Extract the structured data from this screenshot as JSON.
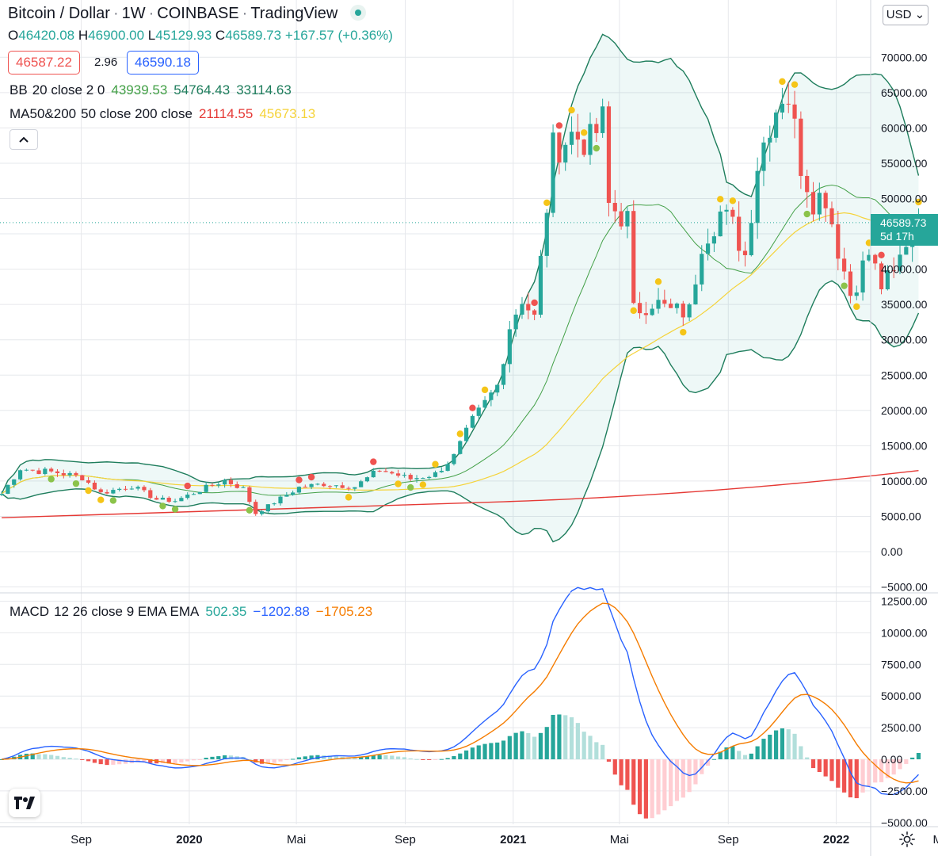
{
  "header": {
    "symbol": "Bitcoin / Dollar",
    "interval": "1W",
    "exchange": "COINBASE",
    "provider": "TradingView"
  },
  "ohlc": {
    "o_label": "O",
    "o": "46420.08",
    "h_label": "H",
    "h": "46900.00",
    "l_label": "L",
    "l": "45129.93",
    "c_label": "C",
    "c": "46589.73",
    "change": "+167.57 (+0.36%)"
  },
  "quote": {
    "bid": "46587.22",
    "spread": "2.96",
    "ask": "46590.18"
  },
  "indicators": {
    "bb": {
      "name": "BB",
      "params": "20 close 2 0",
      "basis": "43939.53",
      "upper": "54764.43",
      "lower": "33114.63"
    },
    "ma": {
      "name": "MA50&200",
      "params": "50 close 200 close",
      "ma50": "21114.55",
      "ma200": "45673.13"
    },
    "macd": {
      "name": "MACD",
      "params": "12 26 close 9 EMA EMA",
      "hist": "502.35",
      "macd": "−1202.88",
      "signal": "−1705.23"
    }
  },
  "currency": "USD",
  "last_price": {
    "value": "46589.73",
    "countdown": "5d 17h"
  },
  "colors": {
    "up": "#26a69a",
    "down": "#ef5350",
    "bb": "#1e7d5c",
    "ma_red": "#e53935",
    "ma_yellow": "#f5d33a",
    "macd_line": "#2962ff",
    "signal_line": "#f57c00",
    "grid": "#e6e8ec"
  },
  "chart_data": [
    {
      "type": "candlestick",
      "title": "Bitcoin / Dollar",
      "interval": "1W",
      "ylim": [
        -5000,
        75000
      ],
      "y_ticks": [
        "70000.00",
        "65000.00",
        "60000.00",
        "55000.00",
        "50000.00",
        "45000.00",
        "40000.00",
        "35000.00",
        "30000.00",
        "25000.00",
        "20000.00",
        "15000.00",
        "10000.00",
        "5000.00",
        "0.00",
        "−5000.00"
      ],
      "x_ticks": [
        "Sep",
        "2020",
        "Mai",
        "Sep",
        "2021",
        "Mai",
        "Sep",
        "2022",
        "Mai"
      ],
      "x_tick_dates": [
        "2019-09-01",
        "2020-01-01",
        "2020-05-01",
        "2020-09-01",
        "2021-01-01",
        "2021-05-01",
        "2021-09-01",
        "2022-01-01",
        "2022-05-01"
      ],
      "start_date": "2019-06-03",
      "close_anchors": [
        [
          "2019-06-03",
          8200
        ],
        [
          "2019-06-24",
          11800
        ],
        [
          "2019-07-08",
          11500
        ],
        [
          "2019-08-05",
          11200
        ],
        [
          "2019-09-02",
          10500
        ],
        [
          "2019-09-23",
          8300
        ],
        [
          "2019-10-28",
          9300
        ],
        [
          "2019-11-25",
          7400
        ],
        [
          "2019-12-16",
          7200
        ],
        [
          "2020-01-13",
          8700
        ],
        [
          "2020-02-10",
          10100
        ],
        [
          "2020-03-02",
          8900
        ],
        [
          "2020-03-16",
          5400
        ],
        [
          "2020-04-06",
          7000
        ],
        [
          "2020-05-04",
          9100
        ],
        [
          "2020-06-01",
          9600
        ],
        [
          "2020-07-06",
          9200
        ],
        [
          "2020-08-03",
          11600
        ],
        [
          "2020-09-07",
          10300
        ],
        [
          "2020-10-05",
          11000
        ],
        [
          "2020-10-26",
          13500
        ],
        [
          "2020-11-16",
          18500
        ],
        [
          "2020-12-14",
          23500
        ],
        [
          "2020-12-28",
          32000
        ],
        [
          "2021-01-11",
          36000
        ],
        [
          "2021-01-25",
          33000
        ],
        [
          "2021-02-15",
          57000
        ],
        [
          "2021-03-08",
          59000
        ],
        [
          "2021-03-29",
          58000
        ],
        [
          "2021-04-12",
          61000
        ],
        [
          "2021-04-19",
          49000
        ],
        [
          "2021-05-10",
          47000
        ],
        [
          "2021-05-17",
          34000
        ],
        [
          "2021-06-07",
          35500
        ],
        [
          "2021-06-28",
          34000
        ],
        [
          "2021-07-19",
          34000
        ],
        [
          "2021-08-02",
          44000
        ],
        [
          "2021-08-23",
          48000
        ],
        [
          "2021-09-06",
          46000
        ],
        [
          "2021-09-20",
          42000
        ],
        [
          "2021-10-04",
          55000
        ],
        [
          "2021-10-18",
          61000
        ],
        [
          "2021-11-01",
          65000
        ],
        [
          "2021-11-08",
          64500
        ],
        [
          "2021-11-22",
          55000
        ],
        [
          "2021-12-06",
          50000
        ],
        [
          "2021-12-20",
          50500
        ],
        [
          "2022-01-03",
          43000
        ],
        [
          "2022-01-17",
          36500
        ],
        [
          "2022-02-07",
          42200
        ],
        [
          "2022-02-21",
          37700
        ],
        [
          "2022-03-07",
          39000
        ],
        [
          "2022-03-28",
          46600
        ],
        [
          "2022-04-04",
          46589.73
        ]
      ],
      "last_close": 46589.73
    },
    {
      "type": "line",
      "title": "MACD",
      "ylim": [
        -5000,
        12500
      ],
      "y_ticks": [
        "12500.00",
        "10000.00",
        "7500.00",
        "5000.00",
        "2500.00",
        "0.00",
        "−2500.00",
        "−5000.00"
      ],
      "series": [
        {
          "name": "MACD"
        },
        {
          "name": "Signal"
        },
        {
          "name": "Histogram"
        }
      ],
      "last": {
        "histogram": 502.35,
        "macd": -1202.88,
        "signal": -1705.23
      }
    }
  ]
}
